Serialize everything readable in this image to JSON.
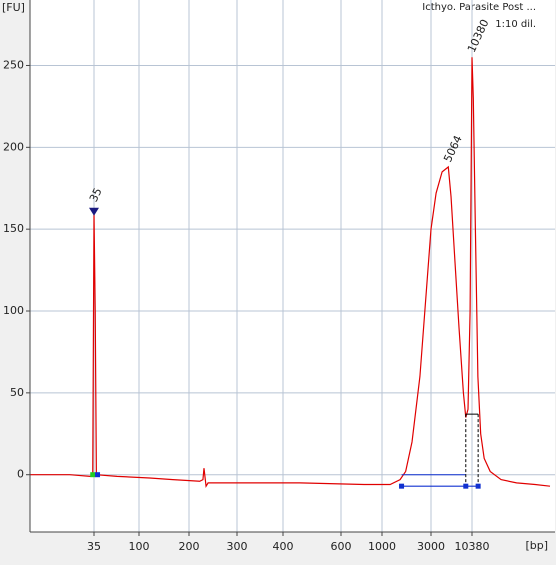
{
  "chart_data": {
    "type": "line",
    "title": "Icthyo. Parasite Post ...",
    "subtitle": "1:10 dil.",
    "y_label": "[FU]",
    "x_label": "[bp]",
    "xlim": [
      8,
      110000
    ],
    "ylim": [
      -35,
      290
    ],
    "xticks": [
      35,
      100,
      200,
      300,
      400,
      600,
      1000,
      3000,
      10380
    ],
    "yticks": [
      0,
      50,
      100,
      150,
      200,
      250
    ],
    "grid": true,
    "series": [
      {
        "color": "#e00000",
        "x": [
          8,
          20,
          32,
          34,
          35,
          36,
          37,
          60,
          116,
          160,
          219,
          225,
          227,
          231,
          235,
          300,
          450,
          800,
          1200,
          1500,
          1700,
          1960,
          2340,
          2800,
          3000,
          3500,
          4200,
          5064,
          5500,
          6200,
          7000,
          8000,
          8600,
          9200,
          9800,
          10380,
          10800,
          11500,
          12400,
          13500,
          15000,
          18000,
          25000,
          40000,
          70000,
          110000
        ],
        "values": [
          0,
          0,
          -1,
          0,
          160,
          100,
          0,
          -1,
          -2,
          -3,
          -4,
          -3,
          4,
          -7,
          -5,
          -5,
          -5,
          -6,
          -6,
          -3,
          2,
          20,
          60,
          125,
          150,
          172,
          185,
          188,
          170,
          130,
          90,
          50,
          35,
          40,
          100,
          255,
          230,
          150,
          60,
          25,
          10,
          2,
          -3,
          -5,
          -6,
          -7
        ]
      }
    ],
    "peak_labels": [
      {
        "x": 35,
        "y": 160,
        "color": "#2e9a2e"
      },
      {
        "x": 5064,
        "y": 188,
        "color": "#000000"
      },
      {
        "x": 10380,
        "y": 255,
        "color": "#8a3cc8"
      }
    ],
    "markers": {
      "color": "#1030d0",
      "lower_x": [
        34,
        38
      ],
      "lower_y": 0,
      "region_x": [
        1550,
        8600,
        12500
      ],
      "region_y": -7,
      "level_y": 37
    }
  }
}
